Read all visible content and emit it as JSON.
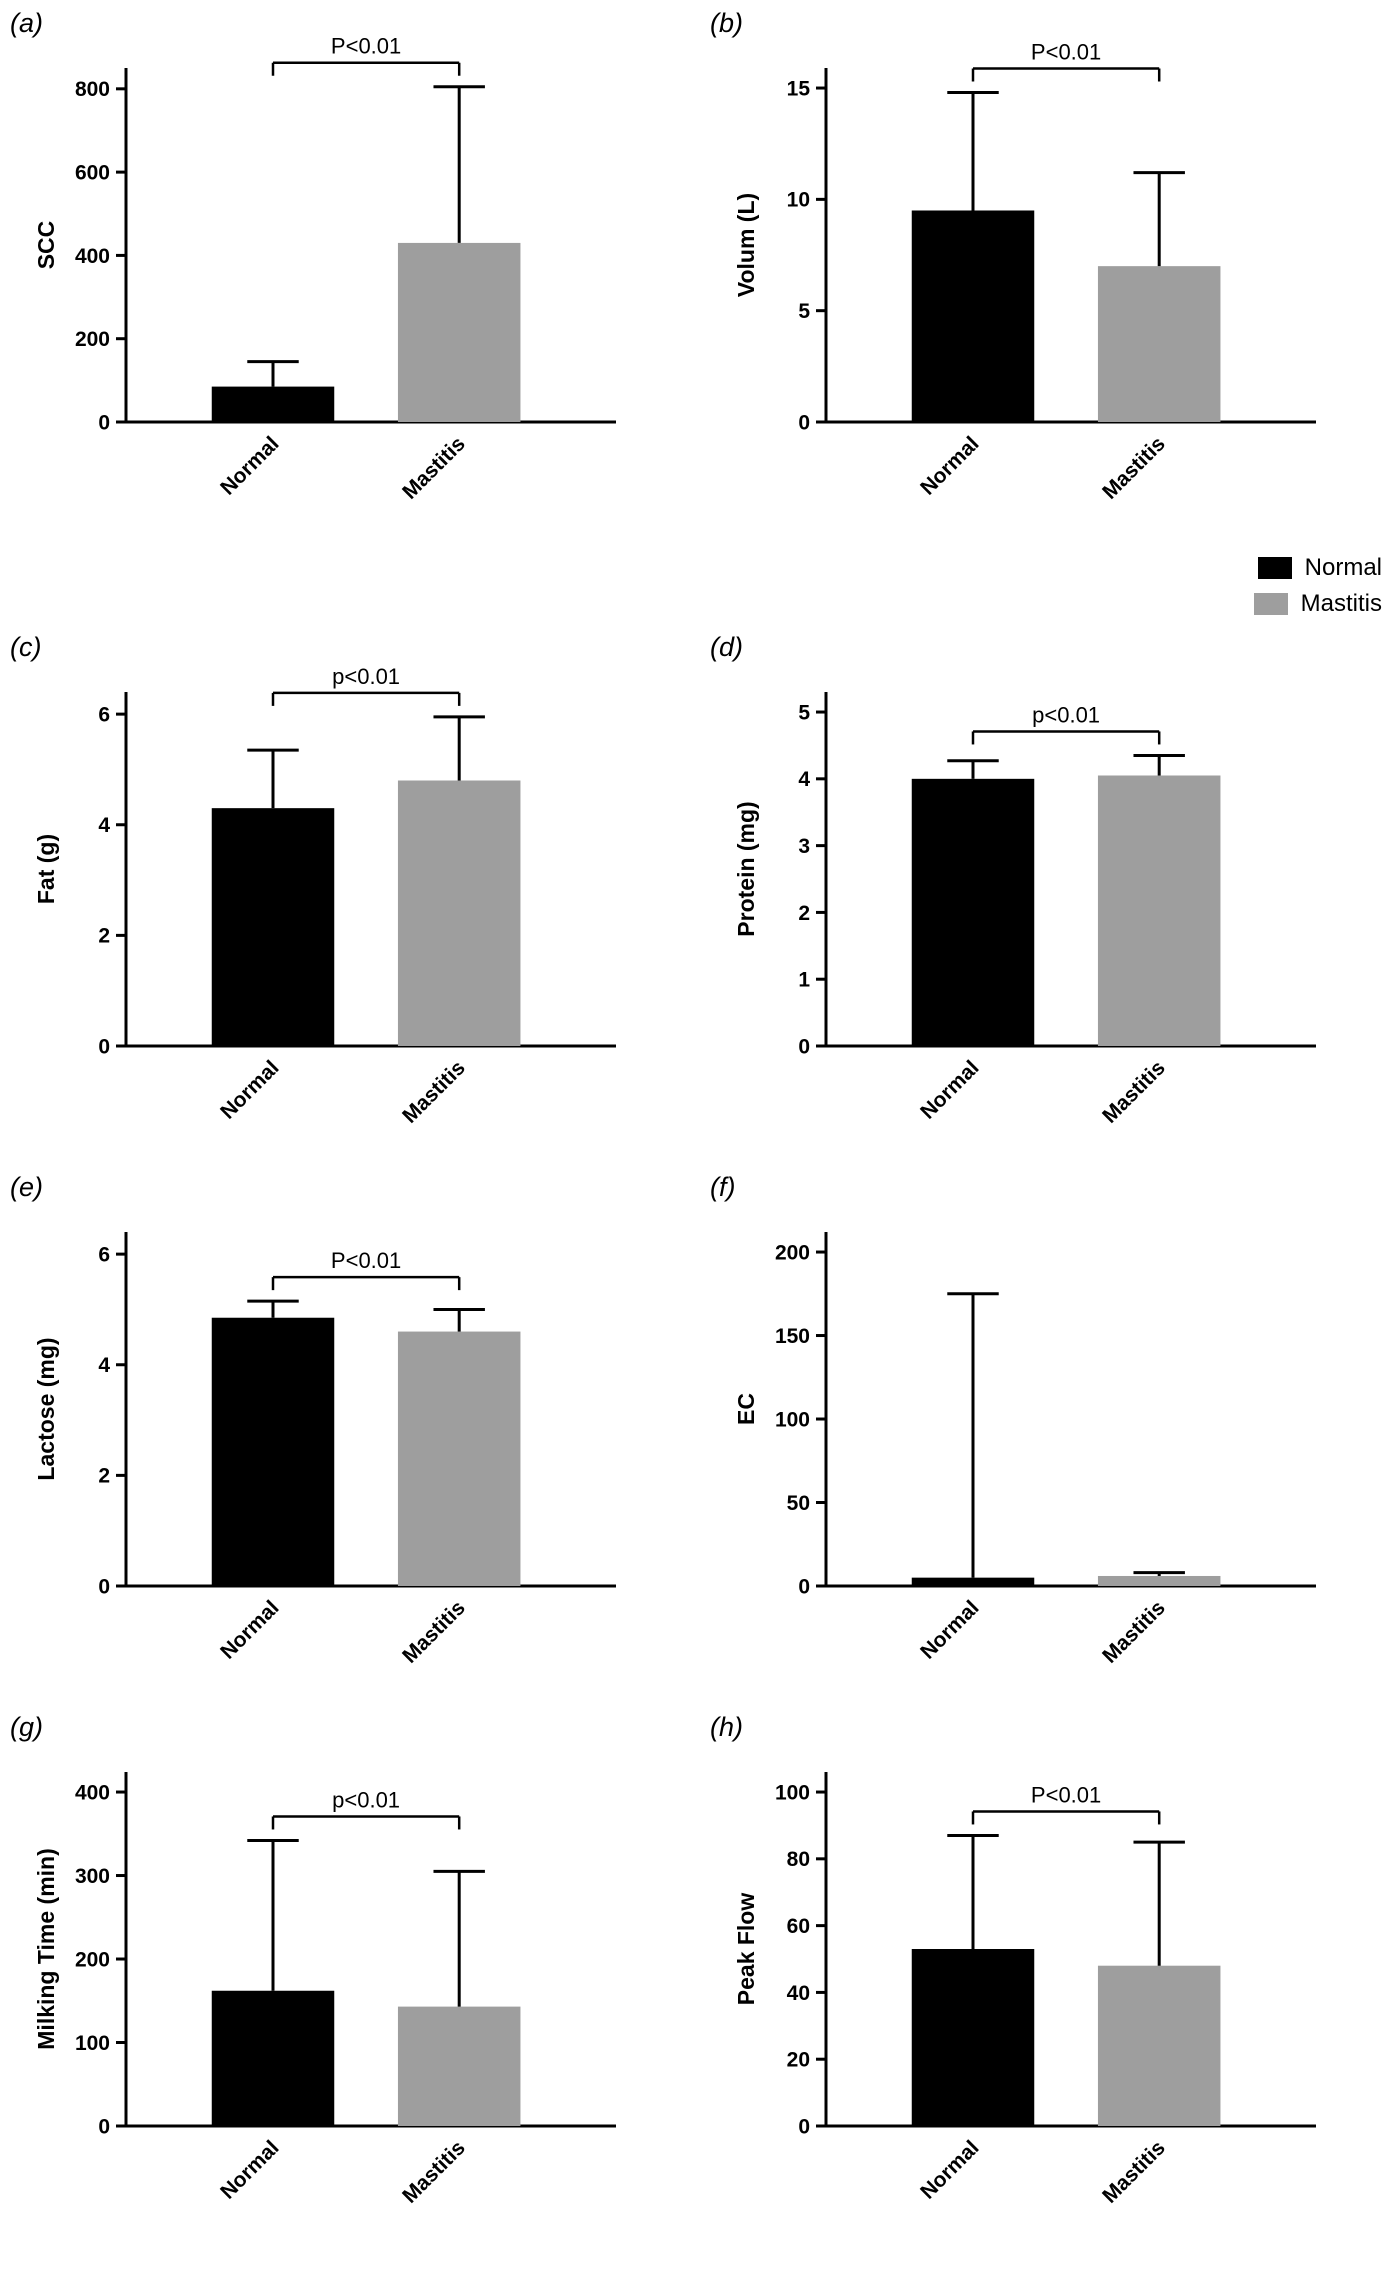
{
  "page": {
    "background": "#ffffff"
  },
  "legend": {
    "position": "right, between first and second chart rows",
    "items": [
      {
        "label": "Normal",
        "color": "#000000"
      },
      {
        "label": "Mastitis",
        "color": "#9E9E9E"
      }
    ]
  },
  "chart_data": [
    {
      "type": "bar",
      "panel": "(a)",
      "ylabel": "SCC",
      "categories": [
        "Normal",
        "Mastitis"
      ],
      "values": [
        85,
        430
      ],
      "errors_up": [
        60,
        375
      ],
      "bar_colors": [
        "#000000",
        "#9E9E9E"
      ],
      "yticks": [
        0,
        200,
        400,
        600,
        800
      ],
      "ylim": [
        0,
        850
      ],
      "significance": "P<0.01",
      "grid": false
    },
    {
      "type": "bar",
      "panel": "(b)",
      "ylabel": "Volum (L)",
      "categories": [
        "Normal",
        "Mastitis"
      ],
      "values": [
        9.5,
        7.0
      ],
      "errors_up": [
        5.3,
        4.2
      ],
      "bar_colors": [
        "#000000",
        "#9E9E9E"
      ],
      "yticks": [
        0,
        5,
        10,
        15
      ],
      "ylim": [
        0,
        15.9
      ],
      "significance": "P<0.01",
      "grid": false
    },
    {
      "type": "bar",
      "panel": "(c)",
      "ylabel": "Fat (g)",
      "categories": [
        "Normal",
        "Mastitis"
      ],
      "values": [
        4.3,
        4.8
      ],
      "errors_up": [
        1.05,
        1.15
      ],
      "bar_colors": [
        "#000000",
        "#9E9E9E"
      ],
      "yticks": [
        0,
        2,
        4,
        6
      ],
      "ylim": [
        0,
        6.4
      ],
      "significance": "p<0.01",
      "grid": false
    },
    {
      "type": "bar",
      "panel": "(d)",
      "ylabel": "Protein (mg)",
      "categories": [
        "Normal",
        "Mastitis"
      ],
      "values": [
        4.0,
        4.05
      ],
      "errors_up": [
        0.27,
        0.3
      ],
      "bar_colors": [
        "#000000",
        "#9E9E9E"
      ],
      "yticks": [
        0,
        1,
        2,
        3,
        4,
        5
      ],
      "ylim": [
        0,
        5.3
      ],
      "significance": "p<0.01",
      "grid": false
    },
    {
      "type": "bar",
      "panel": "(e)",
      "ylabel": "Lactose (mg)",
      "categories": [
        "Normal",
        "Mastitis"
      ],
      "values": [
        4.85,
        4.6
      ],
      "errors_up": [
        0.3,
        0.4
      ],
      "bar_colors": [
        "#000000",
        "#9E9E9E"
      ],
      "yticks": [
        0,
        2,
        4,
        6
      ],
      "ylim": [
        0,
        6.4
      ],
      "significance": "P<0.01",
      "grid": false
    },
    {
      "type": "bar",
      "panel": "(f)",
      "ylabel": "EC",
      "categories": [
        "Normal",
        "Mastitis"
      ],
      "values": [
        5,
        6
      ],
      "errors_up": [
        170,
        2
      ],
      "bar_colors": [
        "#000000",
        "#9E9E9E"
      ],
      "yticks": [
        0,
        50,
        100,
        150,
        200
      ],
      "ylim": [
        0,
        212
      ],
      "significance": null,
      "grid": false
    },
    {
      "type": "bar",
      "panel": "(g)",
      "ylabel": "Milking Time (min)",
      "categories": [
        "Normal",
        "Mastitis"
      ],
      "values": [
        162,
        143
      ],
      "errors_up": [
        180,
        162
      ],
      "bar_colors": [
        "#000000",
        "#9E9E9E"
      ],
      "yticks": [
        0,
        100,
        200,
        300,
        400
      ],
      "ylim": [
        0,
        424
      ],
      "significance": "p<0.01",
      "grid": false
    },
    {
      "type": "bar",
      "panel": "(h)",
      "ylabel": "Peak Flow",
      "categories": [
        "Normal",
        "Mastitis"
      ],
      "values": [
        53,
        48
      ],
      "errors_up": [
        34,
        37
      ],
      "bar_colors": [
        "#000000",
        "#9E9E9E"
      ],
      "yticks": [
        0,
        20,
        40,
        60,
        80,
        100
      ],
      "ylim": [
        0,
        106
      ],
      "significance": "P<0.01",
      "grid": false
    }
  ]
}
